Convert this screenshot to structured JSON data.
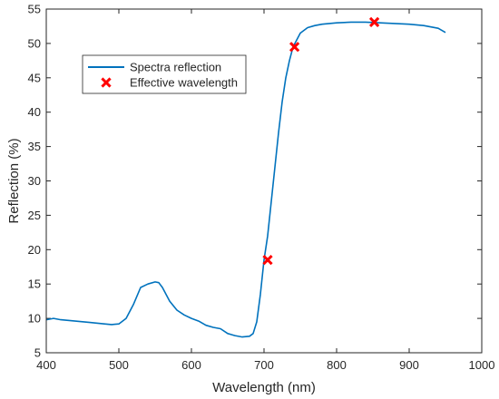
{
  "chart_data": {
    "type": "line",
    "title": "",
    "xlabel": "Wavelength (nm)",
    "ylabel": "Reflection (%)",
    "xlim": [
      400,
      1000
    ],
    "ylim": [
      5,
      55
    ],
    "xticks": [
      400,
      500,
      600,
      700,
      800,
      900,
      1000
    ],
    "yticks": [
      5,
      10,
      15,
      20,
      25,
      30,
      35,
      40,
      45,
      50,
      55
    ],
    "grid": false,
    "legend": {
      "position": "top-left"
    },
    "colors": {
      "line": "#0072BD",
      "marker": "#FF0000",
      "axis": "#262626"
    },
    "series": [
      {
        "name": "Spectra reflection",
        "kind": "line",
        "x": [
          400,
          410,
          420,
          440,
          460,
          480,
          490,
          500,
          510,
          520,
          530,
          540,
          550,
          555,
          560,
          570,
          580,
          590,
          600,
          610,
          620,
          630,
          640,
          650,
          660,
          670,
          680,
          685,
          690,
          695,
          700,
          705,
          710,
          715,
          720,
          725,
          730,
          735,
          740,
          745,
          750,
          760,
          770,
          780,
          800,
          820,
          840,
          860,
          880,
          900,
          920,
          940,
          950
        ],
        "y": [
          9.8,
          10.0,
          9.8,
          9.6,
          9.4,
          9.2,
          9.1,
          9.2,
          10.0,
          12.0,
          14.5,
          15.0,
          15.3,
          15.2,
          14.5,
          12.5,
          11.2,
          10.5,
          10.0,
          9.6,
          9.0,
          8.7,
          8.5,
          7.8,
          7.5,
          7.3,
          7.4,
          7.8,
          9.5,
          13.5,
          18.5,
          22.0,
          27.0,
          32.0,
          37.0,
          41.5,
          45.0,
          47.5,
          49.5,
          50.5,
          51.5,
          52.3,
          52.6,
          52.8,
          53.0,
          53.1,
          53.1,
          53.0,
          52.9,
          52.8,
          52.6,
          52.2,
          51.6
        ]
      },
      {
        "name": "Effective wavelength",
        "kind": "marker",
        "x": [
          705,
          742,
          852
        ],
        "y": [
          18.5,
          49.5,
          53.1
        ]
      }
    ]
  }
}
